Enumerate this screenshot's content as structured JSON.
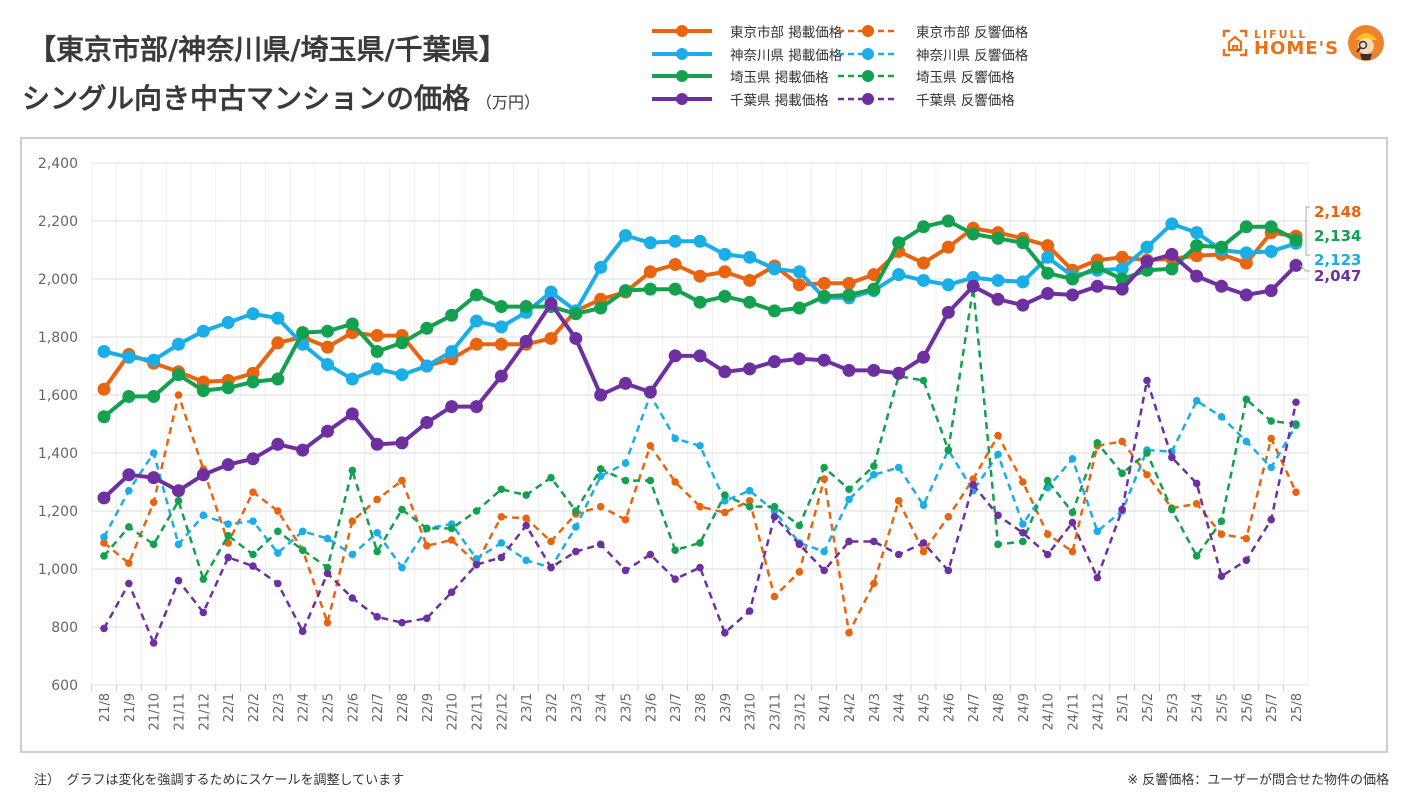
{
  "header": {
    "title_line1": "【東京市部/神奈川県/埼玉県/千葉県】",
    "title_line2": "シングル向き中古マンションの価格",
    "unit": "（万円）"
  },
  "logo": {
    "line1": "LIFULL",
    "line2": "HOME'S",
    "icon": "house-icon",
    "mascot": "mascot-icon",
    "color": "#e8731c"
  },
  "footer": {
    "note_left": "注）　グラフは変化を強調するためにスケールを調整しています",
    "note_right": "※ 反響価格：ユーザーが問合せた物件の価格"
  },
  "chart_data": {
    "type": "line",
    "title": "【東京市部/神奈川県/埼玉県/千葉県】シングル向き中古マンションの価格（万円）",
    "xlabel": "",
    "ylabel": "万円",
    "ylim": [
      600,
      2400
    ],
    "yticks": [
      600,
      800,
      1000,
      1200,
      1400,
      1600,
      1800,
      2000,
      2200,
      2400
    ],
    "ytick_labels": [
      "600",
      "800",
      "1,000",
      "1,200",
      "1,400",
      "1,600",
      "1,800",
      "2,000",
      "2,200",
      "2,400"
    ],
    "grid": true,
    "legend_position": "top",
    "categories": [
      "21/8",
      "21/9",
      "21/10",
      "21/11",
      "21/12",
      "22/1",
      "22/2",
      "22/3",
      "22/4",
      "22/5",
      "22/6",
      "22/7",
      "22/8",
      "22/9",
      "22/10",
      "22/11",
      "22/12",
      "23/1",
      "23/2",
      "23/3",
      "23/4",
      "23/5",
      "23/6",
      "23/7",
      "23/8",
      "23/9",
      "23/10",
      "23/11",
      "23/12",
      "24/1",
      "24/2",
      "24/3",
      "24/4",
      "24/5",
      "24/6",
      "24/7",
      "24/8",
      "24/9",
      "24/10",
      "24/11",
      "24/12",
      "25/1",
      "25/2",
      "25/3",
      "25/4",
      "25/5",
      "25/6",
      "25/7",
      "25/8"
    ],
    "series": [
      {
        "name": "東京市部 掲載価格",
        "style": "solid",
        "color": "#e8640f",
        "values": [
          1620,
          1740,
          1710,
          1680,
          1645,
          1650,
          1675,
          1780,
          1800,
          1765,
          1815,
          1805,
          1805,
          1700,
          1725,
          1775,
          1775,
          1775,
          1795,
          1890,
          1930,
          1955,
          2025,
          2050,
          2010,
          2025,
          1995,
          2045,
          1980,
          1985,
          1985,
          2015,
          2095,
          2055,
          2110,
          2175,
          2160,
          2140,
          2115,
          2030,
          2065,
          2075,
          2065,
          2070,
          2080,
          2085,
          2055,
          2160,
          2148
        ]
      },
      {
        "name": "神奈川県 掲載価格",
        "style": "solid",
        "color": "#1aaee8",
        "values": [
          1750,
          1730,
          1720,
          1775,
          1820,
          1850,
          1880,
          1865,
          1775,
          1705,
          1655,
          1690,
          1670,
          1700,
          1750,
          1855,
          1835,
          1885,
          1955,
          1890,
          2040,
          2150,
          2125,
          2130,
          2130,
          2085,
          2075,
          2035,
          2025,
          1935,
          1935,
          1960,
          2015,
          1995,
          1980,
          2005,
          1995,
          1990,
          2075,
          2010,
          2030,
          2035,
          2110,
          2190,
          2160,
          2100,
          2090,
          2095,
          2123
        ]
      },
      {
        "name": "埼玉県 掲載価格",
        "style": "solid",
        "color": "#13a04f",
        "values": [
          1525,
          1595,
          1595,
          1670,
          1615,
          1625,
          1645,
          1655,
          1815,
          1820,
          1845,
          1750,
          1780,
          1830,
          1875,
          1945,
          1905,
          1905,
          1905,
          1880,
          1900,
          1960,
          1965,
          1965,
          1920,
          1940,
          1920,
          1890,
          1900,
          1940,
          1945,
          1965,
          2125,
          2180,
          2200,
          2155,
          2140,
          2125,
          2020,
          2000,
          2040,
          2000,
          2030,
          2035,
          2115,
          2110,
          2180,
          2180,
          2134
        ]
      },
      {
        "name": "千葉県 掲載価格",
        "style": "solid",
        "color": "#6e30a0",
        "values": [
          1245,
          1325,
          1315,
          1270,
          1325,
          1360,
          1380,
          1430,
          1410,
          1475,
          1535,
          1430,
          1435,
          1505,
          1560,
          1560,
          1665,
          1785,
          1915,
          1795,
          1600,
          1640,
          1610,
          1735,
          1735,
          1680,
          1690,
          1715,
          1725,
          1720,
          1685,
          1685,
          1675,
          1730,
          1885,
          1975,
          1930,
          1910,
          1950,
          1945,
          1975,
          1965,
          2060,
          2085,
          2010,
          1975,
          1945,
          1960,
          2047
        ]
      },
      {
        "name": "東京市部 反響価格",
        "style": "dashed",
        "color": "#e8640f",
        "values": [
          1090,
          1020,
          1230,
          1600,
          1345,
          1090,
          1265,
          1200,
          1065,
          815,
          1165,
          1240,
          1305,
          1080,
          1100,
          1020,
          1180,
          1175,
          1095,
          1190,
          1215,
          1170,
          1425,
          1300,
          1215,
          1195,
          1235,
          905,
          990,
          1310,
          780,
          950,
          1235,
          1060,
          1180,
          1310,
          1460,
          1300,
          1120,
          1060,
          1425,
          1440,
          1325,
          1210,
          1225,
          1120,
          1105,
          1450,
          1265
        ]
      },
      {
        "name": "神奈川県 反響価格",
        "style": "dashed",
        "color": "#1aaee8",
        "values": [
          1110,
          1270,
          1400,
          1085,
          1185,
          1155,
          1165,
          1055,
          1130,
          1105,
          1050,
          1125,
          1005,
          1140,
          1155,
          1035,
          1090,
          1030,
          1005,
          1145,
          1320,
          1365,
          1600,
          1450,
          1425,
          1235,
          1270,
          1200,
          1090,
          1060,
          1240,
          1325,
          1350,
          1220,
          1410,
          1270,
          1395,
          1155,
          1280,
          1380,
          1130,
          1200,
          1410,
          1405,
          1580,
          1525,
          1440,
          1350,
          1495
        ]
      },
      {
        "name": "埼玉県 反響価格",
        "style": "dashed",
        "color": "#13a04f",
        "values": [
          1045,
          1145,
          1085,
          1235,
          965,
          1115,
          1050,
          1130,
          1065,
          1005,
          1340,
          1060,
          1205,
          1140,
          1140,
          1200,
          1275,
          1255,
          1315,
          1200,
          1345,
          1305,
          1305,
          1065,
          1090,
          1255,
          1215,
          1215,
          1150,
          1350,
          1275,
          1355,
          1665,
          1650,
          1410,
          1970,
          1085,
          1095,
          1305,
          1195,
          1435,
          1330,
          1400,
          1205,
          1045,
          1165,
          1585,
          1510,
          1500
        ]
      },
      {
        "name": "千葉県 反響価格",
        "style": "dashed",
        "color": "#6e30a0",
        "values": [
          795,
          950,
          745,
          960,
          850,
          1040,
          1010,
          950,
          785,
          985,
          900,
          835,
          815,
          830,
          920,
          1015,
          1040,
          1150,
          1005,
          1060,
          1085,
          995,
          1050,
          965,
          1005,
          780,
          855,
          1180,
          1085,
          995,
          1095,
          1095,
          1050,
          1090,
          995,
          1290,
          1185,
          1125,
          1050,
          1160,
          970,
          1205,
          1650,
          1385,
          1295,
          975,
          1030,
          1170,
          1575
        ]
      }
    ],
    "end_labels": [
      {
        "series": "東京市部 掲載価格",
        "text": "2,148",
        "color": "#e8640f"
      },
      {
        "series": "埼玉県 掲載価格",
        "text": "2,134",
        "color": "#13a04f"
      },
      {
        "series": "神奈川県 掲載価格",
        "text": "2,123",
        "color": "#1aaee8"
      },
      {
        "series": "千葉県 掲載価格",
        "text": "2,047",
        "color": "#6e30a0"
      }
    ]
  }
}
